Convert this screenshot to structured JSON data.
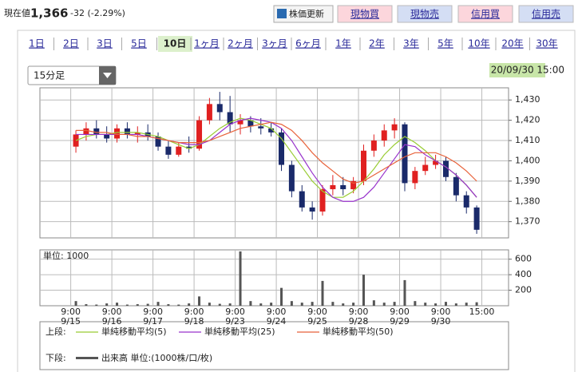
{
  "header": {
    "label": "現在値",
    "price": "1,366",
    "change": "-32 (-2.29%)",
    "refresh": "株価更新",
    "buttons": [
      "現物買",
      "現物売",
      "信用買",
      "信用売"
    ]
  },
  "tabs": {
    "items": [
      "1日",
      "2日",
      "3日",
      "5日",
      "10日",
      "1ヶ月",
      "2ヶ月",
      "3ヶ月",
      "6ヶ月",
      "1年",
      "2年",
      "3年",
      "5年",
      "10年",
      "20年",
      "30年"
    ],
    "selected": 4
  },
  "interval": "15分足",
  "timestamp": "20/09/30 15:00",
  "chart_data": [
    {
      "type": "candlestick",
      "legend_label": "上段:",
      "up_color": "#e02020",
      "down_color": "#1a2a6a",
      "x": [
        0.5,
        1.5,
        2.5,
        3.5,
        4.5,
        5.5,
        6.5,
        7.5,
        8.5,
        9.5,
        10.5,
        11.5,
        12.5,
        13.5,
        14.5,
        15.5,
        16.5,
        17.5,
        18.5,
        19.5,
        20.5,
        21.5,
        22.5,
        23.5,
        24.5,
        25.5,
        26.5,
        27.5,
        28.5,
        29.5,
        30.5,
        31.5,
        32.5,
        33.5,
        34.5,
        35.5,
        36.5,
        37.5,
        38.5,
        39.5
      ],
      "open": [
        1407,
        1413,
        1416,
        1413,
        1411,
        1416,
        1413,
        1414,
        1412,
        1407,
        1403,
        1407,
        1406,
        1420,
        1428,
        1424,
        1418,
        1420,
        1417,
        1416,
        1414,
        1398,
        1385,
        1377,
        1375,
        1386,
        1388,
        1386,
        1390,
        1405,
        1410,
        1415,
        1418,
        1389,
        1395,
        1398,
        1400,
        1392,
        1383,
        1377
      ],
      "high": [
        1415,
        1419,
        1420,
        1417,
        1418,
        1419,
        1417,
        1418,
        1414,
        1410,
        1409,
        1412,
        1422,
        1431,
        1434,
        1432,
        1423,
        1422,
        1421,
        1419,
        1416,
        1400,
        1388,
        1380,
        1388,
        1393,
        1392,
        1392,
        1408,
        1413,
        1418,
        1421,
        1419,
        1397,
        1402,
        1403,
        1402,
        1394,
        1385,
        1378
      ],
      "low": [
        1404,
        1410,
        1411,
        1409,
        1409,
        1411,
        1409,
        1410,
        1405,
        1401,
        1402,
        1404,
        1405,
        1418,
        1420,
        1414,
        1413,
        1414,
        1413,
        1412,
        1395,
        1382,
        1375,
        1371,
        1373,
        1383,
        1383,
        1384,
        1388,
        1402,
        1407,
        1411,
        1385,
        1386,
        1393,
        1396,
        1390,
        1380,
        1374,
        1364
      ],
      "close": [
        1413,
        1416,
        1413,
        1411,
        1416,
        1413,
        1414,
        1412,
        1407,
        1403,
        1407,
        1406,
        1420,
        1428,
        1424,
        1418,
        1420,
        1417,
        1416,
        1414,
        1398,
        1385,
        1377,
        1375,
        1386,
        1388,
        1386,
        1390,
        1405,
        1410,
        1415,
        1418,
        1389,
        1395,
        1398,
        1400,
        1392,
        1383,
        1377,
        1366
      ],
      "series": [
        {
          "name": "単純移動平均(5)",
          "color": "#99cc33",
          "values": [
            1410,
            1412,
            1413,
            1413,
            1414,
            1414,
            1414,
            1413,
            1412,
            1410,
            1408,
            1406,
            1408,
            1412,
            1416,
            1419,
            1421,
            1420,
            1418,
            1416,
            1411,
            1404,
            1397,
            1390,
            1385,
            1382,
            1382,
            1385,
            1390,
            1396,
            1403,
            1408,
            1412,
            1409,
            1405,
            1400,
            1397,
            1393,
            1388,
            1382
          ]
        },
        {
          "name": "単純移動平均(25)",
          "color": "#9933cc",
          "values": [
            1413,
            1413,
            1413,
            1413,
            1413,
            1413,
            1413,
            1412,
            1411,
            1410,
            1409,
            1408,
            1408,
            1410,
            1414,
            1418,
            1420,
            1421,
            1420,
            1419,
            1416,
            1410,
            1402,
            1394,
            1387,
            1382,
            1380,
            1380,
            1382,
            1387,
            1394,
            1401,
            1408,
            1407,
            1403,
            1400,
            1397,
            1393,
            1388,
            1382
          ]
        },
        {
          "name": "単純移動平均(50)",
          "color": "#e8623a",
          "values": [
            1415,
            1415,
            1414,
            1414,
            1413,
            1413,
            1412,
            1412,
            1411,
            1410,
            1409,
            1409,
            1409,
            1410,
            1412,
            1414,
            1416,
            1417,
            1418,
            1419,
            1418,
            1415,
            1410,
            1404,
            1399,
            1395,
            1391,
            1389,
            1390,
            1393,
            1396,
            1399,
            1402,
            1404,
            1404,
            1404,
            1402,
            1399,
            1395,
            1390
          ]
        }
      ],
      "xlim": [
        -3,
        42.6
      ],
      "ylim": [
        1362,
        1436
      ],
      "yticks": [
        {
          "value": 1370,
          "label": "1,370"
        },
        {
          "value": 1380,
          "label": "1,380"
        },
        {
          "value": 1390,
          "label": "1,390"
        },
        {
          "value": 1400,
          "label": "1,400"
        },
        {
          "value": 1410,
          "label": "1,410"
        },
        {
          "value": 1420,
          "label": "1,420"
        },
        {
          "value": 1430,
          "label": "1,430"
        }
      ],
      "grid": true
    },
    {
      "type": "bar",
      "legend_label": "下段:",
      "name": "出来高 単位:(1000株/口/枚)",
      "unit_label": "単位: 1000",
      "color": "#555555",
      "x": [
        0.5,
        1.5,
        2.5,
        3.5,
        4.5,
        5.5,
        6.5,
        7.5,
        8.5,
        9.5,
        10.5,
        11.5,
        12.5,
        13.5,
        14.5,
        15.5,
        16.5,
        17.5,
        18.5,
        19.5,
        20.5,
        21.5,
        22.5,
        23.5,
        24.5,
        25.5,
        26.5,
        27.5,
        28.5,
        29.5,
        30.5,
        31.5,
        32.5,
        33.5,
        34.5,
        35.5,
        36.5,
        37.5,
        38.5,
        39.5
      ],
      "values": [
        60,
        20,
        15,
        30,
        40,
        15,
        20,
        25,
        50,
        20,
        15,
        30,
        120,
        40,
        25,
        30,
        700,
        60,
        30,
        40,
        230,
        60,
        40,
        50,
        320,
        50,
        30,
        40,
        400,
        70,
        40,
        50,
        330,
        60,
        40,
        30,
        50,
        30,
        40,
        45
      ],
      "xlim": [
        -3,
        42.6
      ],
      "ylim": [
        0,
        720
      ],
      "yticks": [
        200,
        400,
        600
      ],
      "grid": true,
      "xticks": [
        {
          "value": 0,
          "label": "9:00",
          "date": "9/15"
        },
        {
          "value": 4,
          "label": "9:00",
          "date": "9/16"
        },
        {
          "value": 8,
          "label": "9:00",
          "date": "9/17"
        },
        {
          "value": 12,
          "label": "9:00",
          "date": "9/18"
        },
        {
          "value": 16,
          "label": "9:00",
          "date": "9/23"
        },
        {
          "value": 20,
          "label": "9:00",
          "date": "9/24"
        },
        {
          "value": 24,
          "label": "9:00",
          "date": "9/25"
        },
        {
          "value": 28,
          "label": "9:00",
          "date": "9/28"
        },
        {
          "value": 32,
          "label": "9:00",
          "date": "9/29"
        },
        {
          "value": 36,
          "label": "9:00",
          "date": "9/30"
        },
        {
          "value": 40,
          "label": "15:00"
        }
      ]
    }
  ]
}
